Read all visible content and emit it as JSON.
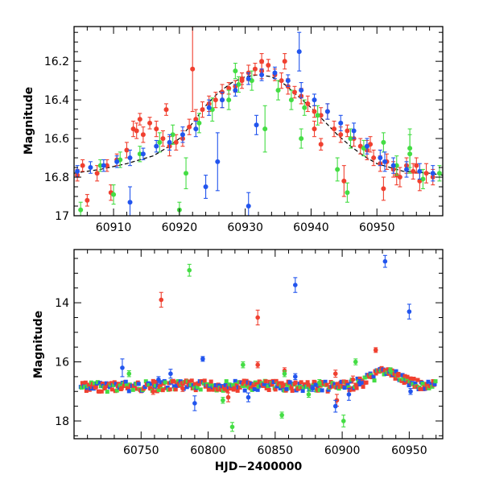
{
  "chart_data": [
    {
      "type": "scatter",
      "panel": "top",
      "title": "",
      "xlabel": "",
      "ylabel": "Magnitude",
      "xlim": [
        60904,
        60960
      ],
      "ylim": [
        17.0,
        16.02
      ],
      "y_inverted": true,
      "x_ticks": [
        60910,
        60920,
        60930,
        60940,
        60950
      ],
      "y_ticks": [
        16.2,
        16.4,
        16.6,
        16.8,
        17
      ],
      "y_tick_labels": [
        "16.2",
        "16.4",
        "16.6",
        "16.8",
        "17"
      ],
      "grid": false,
      "colors": {
        "red": "#f04030",
        "green": "#44dd44",
        "blue": "#2255ee",
        "model": "#000000"
      },
      "model_curve": {
        "name": "model",
        "x": [
          60904,
          60908,
          60912,
          60916,
          60918,
          60920,
          60922,
          60924,
          60926,
          60928,
          60930,
          60932,
          60934,
          60936,
          60938,
          60940,
          60942,
          60944,
          60946,
          60948,
          60950,
          60954,
          60958,
          60960
        ],
        "y": [
          16.78,
          16.76,
          16.73,
          16.69,
          16.65,
          16.6,
          16.52,
          16.43,
          16.36,
          16.31,
          16.28,
          16.27,
          16.28,
          16.32,
          16.38,
          16.44,
          16.51,
          16.58,
          16.64,
          16.69,
          16.73,
          16.77,
          16.78,
          16.79
        ]
      },
      "series": [
        {
          "name": "red",
          "color": "#f04030",
          "x": [
            60904.5,
            60906,
            60907.5,
            60909,
            60910.5,
            60912,
            60913.5,
            60914.5,
            60915.5,
            60916.5,
            60917.5,
            60918.5,
            60919.5,
            60920.5,
            60921.5,
            60922,
            60922.5,
            60923.5,
            60924.5,
            60925.5,
            60926.5,
            60927.5,
            60928.5,
            60929.5,
            60930.5,
            60931.5,
            60932.5,
            60933.5,
            60934.5,
            60935.5,
            60936.5,
            60937.5,
            60938.5,
            60939.5,
            60940.5,
            60941.5,
            60942.5,
            60943.5,
            60944.5,
            60945.5,
            60946.5,
            60947.5,
            60948.5,
            60949.5,
            60950.5,
            60951.5,
            60952.5,
            60953.5,
            60954.5,
            60955.5,
            60956.5,
            60957.5,
            60958.5,
            60905.3,
            60909.6,
            60913,
            60914,
            60918,
            60926.5,
            60929.5,
            60932.5,
            60936,
            60940.5,
            60941.5,
            60945,
            60949,
            60951,
            60953,
            60956
          ],
          "y": [
            16.79,
            16.92,
            16.78,
            16.74,
            16.71,
            16.66,
            16.56,
            16.58,
            16.52,
            16.55,
            16.6,
            16.64,
            16.62,
            16.6,
            16.54,
            16.24,
            16.5,
            16.45,
            16.42,
            16.4,
            16.36,
            16.34,
            16.33,
            16.29,
            16.26,
            16.24,
            16.2,
            16.22,
            16.27,
            16.3,
            16.33,
            16.36,
            16.38,
            16.42,
            16.46,
            16.48,
            16.46,
            16.55,
            16.58,
            16.56,
            16.6,
            16.64,
            16.66,
            16.7,
            16.73,
            16.72,
            16.76,
            16.8,
            16.74,
            16.77,
            16.82,
            16.78,
            16.8,
            16.74,
            16.88,
            16.55,
            16.5,
            16.45,
            16.4,
            16.3,
            16.25,
            16.2,
            16.55,
            16.63,
            16.82,
            16.63,
            16.86,
            16.79,
            16.74
          ],
          "err": [
            0.03,
            0.03,
            0.04,
            0.03,
            0.03,
            0.04,
            0.04,
            0.04,
            0.03,
            0.04,
            0.04,
            0.05,
            0.04,
            0.04,
            0.04,
            0.22,
            0.05,
            0.04,
            0.04,
            0.04,
            0.04,
            0.03,
            0.03,
            0.03,
            0.04,
            0.03,
            0.04,
            0.03,
            0.03,
            0.04,
            0.04,
            0.03,
            0.04,
            0.04,
            0.03,
            0.04,
            0.04,
            0.04,
            0.04,
            0.03,
            0.04,
            0.04,
            0.05,
            0.04,
            0.04,
            0.04,
            0.04,
            0.05,
            0.04,
            0.04,
            0.05,
            0.05,
            0.04,
            0.03,
            0.04,
            0.04,
            0.03,
            0.03,
            0.04,
            0.04,
            0.04,
            0.04,
            0.04,
            0.03,
            0.08,
            0.04,
            0.06,
            0.05,
            0.04
          ]
        },
        {
          "name": "green",
          "color": "#44dd44",
          "x": [
            60905,
            60908,
            60911,
            60914,
            60917,
            60919,
            60921,
            60923,
            60925,
            60927.5,
            60929,
            60931,
            60933,
            60935,
            60937,
            60939,
            60941,
            60944,
            60946,
            60948,
            60951,
            60953,
            60955,
            60957,
            60959.5,
            60910,
            60920,
            60928.5,
            60938.5,
            60945.5,
            60955
          ],
          "y": [
            16.97,
            16.74,
            16.71,
            16.68,
            16.62,
            16.58,
            16.78,
            16.52,
            16.45,
            16.4,
            16.32,
            16.3,
            16.55,
            16.35,
            16.4,
            16.44,
            16.48,
            16.76,
            16.6,
            16.65,
            16.62,
            16.74,
            16.68,
            16.81,
            16.78,
            16.89,
            16.97,
            16.25,
            16.6,
            16.88,
            16.65
          ],
          "err": [
            0.04,
            0.03,
            0.04,
            0.04,
            0.05,
            0.05,
            0.08,
            0.05,
            0.06,
            0.05,
            0.04,
            0.05,
            0.12,
            0.05,
            0.05,
            0.04,
            0.05,
            0.06,
            0.05,
            0.04,
            0.05,
            0.05,
            0.1,
            0.05,
            0.04,
            0.05,
            0.04,
            0.04,
            0.05,
            0.05,
            0.1
          ]
        },
        {
          "name": "blue",
          "color": "#2255ee",
          "x": [
            60904.5,
            60906.5,
            60908.5,
            60910.5,
            60912.5,
            60914.5,
            60916.5,
            60918.5,
            60920.5,
            60922.5,
            60924.5,
            60926.5,
            60928.5,
            60930.5,
            60932.5,
            60934.5,
            60936.5,
            60938.5,
            60940.5,
            60942.5,
            60944.5,
            60946.5,
            60948.5,
            60950.5,
            60952.5,
            60954.5,
            60956.5,
            60958.5,
            60912.5,
            60924,
            60925.8,
            60930.5,
            60931.7,
            60938.2,
            60951.2
          ],
          "y": [
            16.77,
            16.75,
            16.74,
            16.72,
            16.7,
            16.68,
            16.64,
            16.62,
            16.58,
            16.55,
            16.44,
            16.4,
            16.35,
            16.29,
            16.27,
            16.26,
            16.3,
            16.35,
            16.4,
            16.46,
            16.52,
            16.56,
            16.64,
            16.7,
            16.74,
            16.76,
            16.77,
            16.78,
            16.93,
            16.85,
            16.72,
            16.95,
            16.53,
            16.15,
            16.72
          ],
          "err": [
            0.03,
            0.03,
            0.03,
            0.03,
            0.04,
            0.03,
            0.03,
            0.04,
            0.04,
            0.04,
            0.04,
            0.04,
            0.03,
            0.03,
            0.03,
            0.03,
            0.03,
            0.04,
            0.03,
            0.04,
            0.04,
            0.04,
            0.04,
            0.04,
            0.04,
            0.04,
            0.04,
            0.04,
            0.08,
            0.06,
            0.15,
            0.07,
            0.05,
            0.1,
            0.05
          ]
        }
      ]
    },
    {
      "type": "scatter",
      "panel": "bottom",
      "title": "",
      "xlabel": "HJD−2400000",
      "ylabel": "Magnitude",
      "xlim": [
        60700,
        60975
      ],
      "ylim": [
        18.6,
        12.2
      ],
      "y_inverted": true,
      "x_ticks": [
        60750,
        60800,
        60850,
        60900,
        60950
      ],
      "y_ticks": [
        14,
        16,
        18
      ],
      "grid": false,
      "colors": {
        "red": "#f04030",
        "green": "#44dd44",
        "blue": "#2255ee"
      },
      "baseline": {
        "x": [
          60705,
          60800,
          60880,
          60900,
          60915,
          60925,
          60933,
          60940,
          60950,
          60960,
          60970
        ],
        "y": [
          16.85,
          16.8,
          16.82,
          16.85,
          16.7,
          16.45,
          16.27,
          16.45,
          16.72,
          16.78,
          16.8
        ]
      },
      "series": [
        {
          "name": "red",
          "color": "#f04030",
          "x": [
            60765,
            60837,
            60837,
            60895,
            60925,
            60857,
            60908,
            60896,
            60815,
            60759,
            60781
          ],
          "y": [
            13.9,
            14.5,
            16.1,
            16.4,
            15.6,
            16.3,
            16.6,
            17.3,
            17.2,
            17.0,
            16.9
          ],
          "err": [
            0.25,
            0.25,
            0.1,
            0.12,
            0.08,
            0.1,
            0.12,
            0.2,
            0.15,
            0.1,
            0.1
          ]
        },
        {
          "name": "green",
          "color": "#44dd44",
          "x": [
            60786,
            60901,
            60818,
            60826,
            60855,
            60910,
            60741,
            60883,
            60936,
            60875,
            60811,
            60857
          ],
          "y": [
            12.9,
            18.0,
            18.2,
            16.1,
            17.8,
            16.0,
            16.4,
            16.7,
            16.3,
            17.1,
            17.3,
            16.4
          ],
          "err": [
            0.2,
            0.2,
            0.15,
            0.1,
            0.1,
            0.1,
            0.1,
            0.1,
            0.1,
            0.1,
            0.1,
            0.1
          ]
        },
        {
          "name": "blue",
          "color": "#2255ee",
          "x": [
            60932,
            60865,
            60950,
            60736,
            60796,
            60772,
            60790,
            60905,
            60895,
            60865,
            60913,
            60951,
            60763,
            60878,
            60830
          ],
          "y": [
            12.6,
            13.4,
            14.3,
            16.2,
            15.9,
            16.4,
            17.4,
            17.1,
            17.5,
            16.5,
            16.7,
            17.0,
            16.6,
            16.9,
            17.2
          ],
          "err": [
            0.2,
            0.25,
            0.25,
            0.3,
            0.08,
            0.15,
            0.25,
            0.2,
            0.2,
            0.1,
            0.1,
            0.1,
            0.1,
            0.1,
            0.15
          ]
        }
      ]
    }
  ]
}
